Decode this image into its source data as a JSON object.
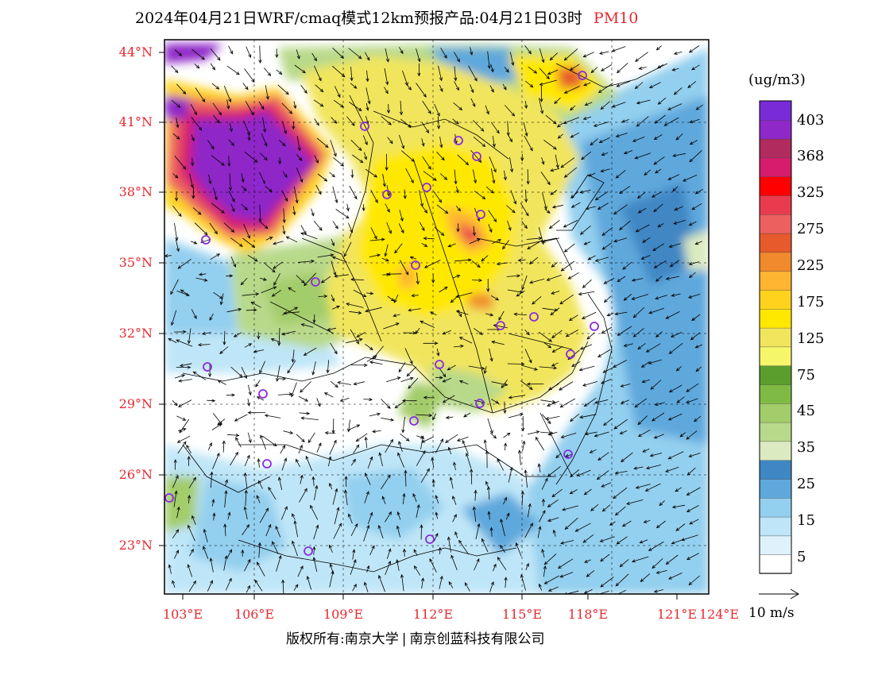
{
  "title": {
    "main": "2024年04月21日WRF/cmaq模式12km预报产品:04月21日03时",
    "pollutant": "PM10"
  },
  "colors": {
    "title_accent": "#e8282f",
    "axis_label": "#e8282f",
    "city_marker": "#8a2be2"
  },
  "axes": {
    "latitude_labels": [
      "44°N",
      "41°N",
      "38°N",
      "35°N",
      "32°N",
      "29°N",
      "26°N",
      "23°N"
    ],
    "longitude_labels": [
      "103°E",
      "106°E",
      "109°E",
      "112°E",
      "115°E",
      "118°E",
      "121°E",
      "124°E"
    ]
  },
  "colorbar": {
    "unit": "(ug/m3)",
    "levels": [
      "403",
      "368",
      "325",
      "275",
      "225",
      "175",
      "125",
      "75",
      "45",
      "35",
      "25",
      "15",
      "5"
    ],
    "colors": [
      "#ffffff",
      "#dff2fb",
      "#bfe6f8",
      "#93cfee",
      "#5fa8dc",
      "#3f87c4",
      "#dbeac0",
      "#b8d98a",
      "#a3cc6a",
      "#7fbb44",
      "#5c9e2e",
      "#f6f66a",
      "#f1e55d",
      "#ffe800",
      "#ffd21e",
      "#ffb531",
      "#f08a2c",
      "#e65a2c",
      "#ec6060",
      "#e83c4e",
      "#ff0000",
      "#d61c6c",
      "#b12b5f",
      "#8e28c8",
      "#7a2bd8"
    ]
  },
  "wind_reference": {
    "label": "10 m/s"
  },
  "copyright": {
    "left": "版权所有:南京大学",
    "right": "南京创蓝科技有限公司"
  },
  "map": {
    "legend_bins": "pm10 concentration field with 10m wind vectors over East China"
  }
}
